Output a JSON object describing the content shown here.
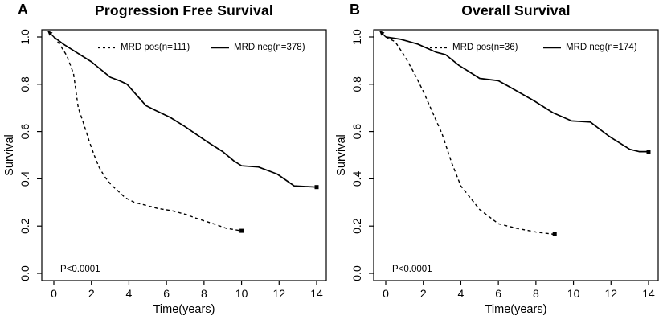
{
  "figure": {
    "background": "#ffffff",
    "line_color": "#000000"
  },
  "chart_data": [
    {
      "type": "line",
      "panel_label": "A",
      "title": "Progression Free Survival",
      "xlabel": "Time(years)",
      "ylabel": "Survival",
      "xlim": [
        0,
        14
      ],
      "ylim": [
        0.0,
        1.0
      ],
      "xticks": [
        0,
        2,
        4,
        6,
        8,
        10,
        12,
        14
      ],
      "yticks": [
        "0.0",
        "0.2",
        "0.4",
        "0.6",
        "0.8",
        "1.0"
      ],
      "grid": false,
      "legend_position": "top-inside",
      "p_value": "P<0.0001",
      "series": [
        {
          "name": "MRD pos(n=111)",
          "style": "dashed",
          "end_marker": "square",
          "points": [
            [
              0,
              1.0
            ],
            [
              0.3,
              0.97
            ],
            [
              0.7,
              0.92
            ],
            [
              1.05,
              0.845
            ],
            [
              1.3,
              0.7
            ],
            [
              1.6,
              0.63
            ],
            [
              1.9,
              0.555
            ],
            [
              2.15,
              0.5
            ],
            [
              2.4,
              0.45
            ],
            [
              2.7,
              0.41
            ],
            [
              3.05,
              0.375
            ],
            [
              3.4,
              0.35
            ],
            [
              3.8,
              0.32
            ],
            [
              4.3,
              0.3
            ],
            [
              4.8,
              0.29
            ],
            [
              5.5,
              0.275
            ],
            [
              6.3,
              0.265
            ],
            [
              7,
              0.25
            ],
            [
              7.7,
              0.23
            ],
            [
              8.5,
              0.21
            ],
            [
              9.2,
              0.19
            ],
            [
              10,
              0.18
            ]
          ]
        },
        {
          "name": "MRD neg(n=378)",
          "style": "solid",
          "end_marker": "square",
          "points": [
            [
              0,
              1.0
            ],
            [
              0.5,
              0.97
            ],
            [
              1,
              0.945
            ],
            [
              2,
              0.895
            ],
            [
              3,
              0.83
            ],
            [
              3.5,
              0.815
            ],
            [
              3.9,
              0.8
            ],
            [
              4.4,
              0.755
            ],
            [
              4.9,
              0.71
            ],
            [
              5.4,
              0.69
            ],
            [
              6.2,
              0.66
            ],
            [
              7,
              0.62
            ],
            [
              8.2,
              0.555
            ],
            [
              9,
              0.515
            ],
            [
              9.6,
              0.475
            ],
            [
              10,
              0.455
            ],
            [
              10.9,
              0.45
            ],
            [
              11.9,
              0.42
            ],
            [
              12.8,
              0.37
            ],
            [
              14,
              0.365
            ]
          ]
        }
      ]
    },
    {
      "type": "line",
      "panel_label": "B",
      "title": "Overall Survival",
      "xlabel": "Time(years)",
      "ylabel": "Survival",
      "xlim": [
        0,
        14
      ],
      "ylim": [
        0.0,
        1.0
      ],
      "xticks": [
        0,
        2,
        4,
        6,
        8,
        10,
        12,
        14
      ],
      "yticks": [
        "0.0",
        "0.2",
        "0.4",
        "0.6",
        "0.8",
        "1.0"
      ],
      "grid": false,
      "legend_position": "top-inside",
      "p_value": "P<0.0001",
      "series": [
        {
          "name": "MRD pos(n=36)",
          "style": "dashed",
          "end_marker": "square",
          "points": [
            [
              0,
              1.0
            ],
            [
              0.5,
              0.98
            ],
            [
              1,
              0.92
            ],
            [
              1.5,
              0.85
            ],
            [
              2,
              0.77
            ],
            [
              2.5,
              0.68
            ],
            [
              3,
              0.59
            ],
            [
              3.5,
              0.47
            ],
            [
              4,
              0.37
            ],
            [
              4.5,
              0.32
            ],
            [
              5,
              0.27
            ],
            [
              5.5,
              0.24
            ],
            [
              6,
              0.21
            ],
            [
              7,
              0.19
            ],
            [
              8,
              0.175
            ],
            [
              9,
              0.165
            ]
          ]
        },
        {
          "name": "MRD neg(n=174)",
          "style": "solid",
          "end_marker": "square",
          "points": [
            [
              0,
              1.0
            ],
            [
              0.8,
              0.99
            ],
            [
              1.7,
              0.97
            ],
            [
              2.7,
              0.935
            ],
            [
              3.2,
              0.925
            ],
            [
              3.9,
              0.88
            ],
            [
              4.7,
              0.84
            ],
            [
              5,
              0.825
            ],
            [
              6,
              0.815
            ],
            [
              6.8,
              0.78
            ],
            [
              7.9,
              0.73
            ],
            [
              8.9,
              0.68
            ],
            [
              9.9,
              0.645
            ],
            [
              10.9,
              0.64
            ],
            [
              11.9,
              0.58
            ],
            [
              13,
              0.525
            ],
            [
              13.5,
              0.515
            ],
            [
              14,
              0.515
            ]
          ]
        }
      ]
    }
  ]
}
